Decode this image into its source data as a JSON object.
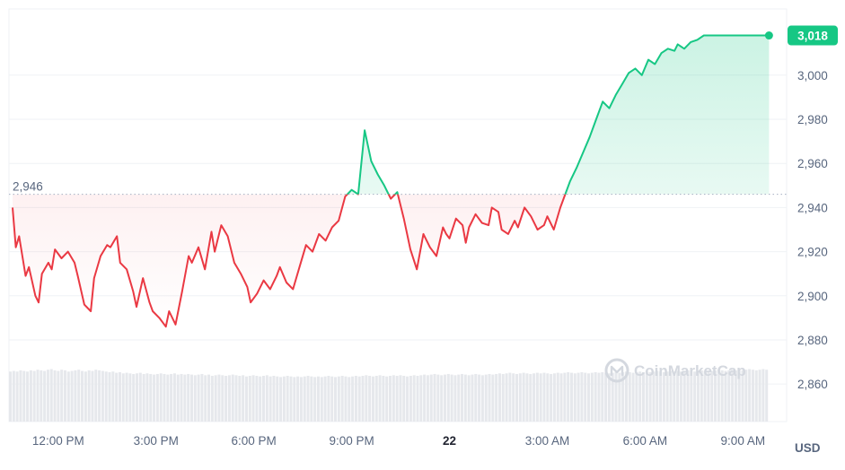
{
  "chart_data": {
    "type": "line",
    "unit": "USD",
    "reference_value": 2946,
    "reference_label": "2,946",
    "last_value": 3018,
    "last_label": "3,018",
    "up_color": "#16c784",
    "down_color": "#ea3943",
    "ylim": [
      2843,
      3030
    ],
    "yticks": [
      {
        "v": 3000,
        "label": "3,000"
      },
      {
        "v": 2980,
        "label": "2,980"
      },
      {
        "v": 2960,
        "label": "2,960"
      },
      {
        "v": 2940,
        "label": "2,940"
      },
      {
        "v": 2920,
        "label": "2,920"
      },
      {
        "v": 2900,
        "label": "2,900"
      },
      {
        "v": 2880,
        "label": "2,880"
      },
      {
        "v": 2860,
        "label": "2,860"
      }
    ],
    "xlim": [
      10.6,
      33.9
    ],
    "xticks": [
      {
        "h": 12,
        "label": "12:00 PM",
        "bold": false
      },
      {
        "h": 15,
        "label": "3:00 PM",
        "bold": false
      },
      {
        "h": 18,
        "label": "6:00 PM",
        "bold": false
      },
      {
        "h": 21,
        "label": "9:00 PM",
        "bold": false
      },
      {
        "h": 24,
        "label": "22",
        "bold": true
      },
      {
        "h": 27,
        "label": "3:00 AM",
        "bold": false
      },
      {
        "h": 30,
        "label": "6:00 AM",
        "bold": false
      },
      {
        "h": 33,
        "label": "9:00 AM",
        "bold": false
      }
    ],
    "series": [
      {
        "x": [
          10.6,
          10.7,
          10.8,
          11.0,
          11.1,
          11.3,
          11.4,
          11.5,
          11.7,
          11.8,
          11.9,
          12.1,
          12.3,
          12.5,
          12.6,
          12.8,
          13.0,
          13.1,
          13.3,
          13.5,
          13.6,
          13.8,
          13.9,
          14.1,
          14.3,
          14.4,
          14.6,
          14.8,
          14.9,
          15.1,
          15.3,
          15.4,
          15.6,
          15.8,
          16.0,
          16.1,
          16.3,
          16.5,
          16.7,
          16.8,
          17.0,
          17.2,
          17.4,
          17.6,
          17.8,
          17.9,
          18.1,
          18.3,
          18.5,
          18.7,
          18.8,
          19.0,
          19.2,
          19.4,
          19.6,
          19.8,
          20.0,
          20.2,
          20.4,
          20.6,
          20.8,
          21.0,
          21.2,
          21.4,
          21.6,
          21.8,
          22.0,
          22.2,
          22.4,
          22.6,
          22.8,
          23.0,
          23.2,
          23.4,
          23.6,
          23.8,
          23.9,
          24.0,
          24.2,
          24.4,
          24.5,
          24.6,
          24.8,
          25.0,
          25.2,
          25.3,
          25.5,
          25.6,
          25.8,
          26.0,
          26.1,
          26.3,
          26.5,
          26.7,
          26.9,
          27.0,
          27.2,
          27.4,
          27.5,
          27.7,
          27.9,
          28.1,
          28.3,
          28.5,
          28.7,
          28.9,
          29.1,
          29.3,
          29.5,
          29.7,
          29.9,
          30.1,
          30.3,
          30.5,
          30.7,
          30.9,
          31.0,
          31.2,
          31.4,
          31.6,
          31.8,
          32.0,
          32.2,
          32.4,
          32.6,
          32.8,
          33.0,
          33.2,
          33.4,
          33.5,
          33.6,
          33.7,
          33.8
        ],
        "values": [
          2940,
          2922,
          2927,
          2909,
          2913,
          2900,
          2897,
          2910,
          2915,
          2912,
          2921,
          2917,
          2920,
          2915,
          2909,
          2896,
          2893,
          2908,
          2918,
          2923,
          2922,
          2927,
          2915,
          2912,
          2902,
          2895,
          2908,
          2897,
          2893,
          2890,
          2886,
          2893,
          2887,
          2902,
          2918,
          2915,
          2922,
          2912,
          2929,
          2920,
          2932,
          2927,
          2915,
          2910,
          2904,
          2897,
          2901,
          2907,
          2903,
          2909,
          2913,
          2906,
          2903,
          2913,
          2923,
          2920,
          2928,
          2925,
          2931,
          2934,
          2945,
          2948,
          2946,
          2975,
          2961,
          2955,
          2950,
          2944,
          2947,
          2935,
          2921,
          2912,
          2928,
          2922,
          2918,
          2931,
          2928,
          2926,
          2935,
          2932,
          2924,
          2931,
          2937,
          2933,
          2932,
          2940,
          2938,
          2930,
          2928,
          2934,
          2931,
          2940,
          2936,
          2930,
          2932,
          2936,
          2930,
          2940,
          2944,
          2952,
          2958,
          2965,
          2972,
          2980,
          2988,
          2985,
          2991,
          2996,
          3001,
          3003,
          3000,
          3007,
          3005,
          3010,
          3012,
          3011,
          3014,
          3012,
          3015,
          3016,
          3018,
          3018,
          3018,
          3018,
          3018,
          3018,
          3018,
          3018,
          3018,
          3018,
          3018,
          3018,
          3018
        ]
      }
    ],
    "volume_bars": [
      0.82,
      0.83,
      0.82,
      0.84,
      0.83,
      0.82,
      0.84,
      0.83,
      0.85,
      0.84,
      0.83,
      0.85,
      0.86,
      0.84,
      0.83,
      0.85,
      0.84,
      0.82,
      0.83,
      0.84,
      0.85,
      0.83,
      0.82,
      0.84,
      0.83,
      0.85,
      0.84,
      0.83,
      0.82,
      0.81,
      0.82,
      0.8,
      0.81,
      0.79,
      0.8,
      0.79,
      0.78,
      0.79,
      0.8,
      0.78,
      0.79,
      0.78,
      0.77,
      0.78,
      0.79,
      0.78,
      0.77,
      0.78,
      0.79,
      0.77,
      0.78,
      0.77,
      0.78,
      0.77,
      0.76,
      0.77,
      0.78,
      0.76,
      0.77,
      0.75,
      0.76,
      0.77,
      0.76,
      0.75,
      0.76,
      0.77,
      0.76,
      0.75,
      0.76,
      0.74,
      0.75,
      0.76,
      0.75,
      0.74,
      0.75,
      0.76,
      0.74,
      0.75,
      0.74,
      0.73,
      0.74,
      0.75,
      0.74,
      0.73,
      0.74,
      0.73,
      0.74,
      0.75,
      0.74,
      0.73,
      0.74,
      0.73,
      0.74,
      0.75,
      0.74,
      0.73,
      0.74,
      0.75,
      0.74,
      0.73,
      0.74,
      0.75,
      0.74,
      0.75,
      0.76,
      0.75,
      0.74,
      0.75,
      0.76,
      0.75,
      0.74,
      0.75,
      0.76,
      0.75,
      0.76,
      0.75,
      0.74,
      0.75,
      0.76,
      0.75,
      0.76,
      0.77,
      0.76,
      0.77,
      0.78,
      0.77,
      0.76,
      0.77,
      0.78,
      0.77,
      0.76,
      0.77,
      0.78,
      0.77,
      0.76,
      0.77,
      0.78,
      0.77,
      0.76,
      0.77,
      0.78,
      0.77,
      0.78,
      0.79,
      0.78,
      0.79,
      0.8,
      0.79,
      0.78,
      0.79,
      0.8,
      0.79,
      0.78,
      0.79,
      0.8,
      0.79,
      0.8,
      0.79,
      0.78,
      0.79,
      0.8,
      0.79,
      0.8,
      0.81,
      0.8,
      0.79,
      0.8,
      0.81,
      0.8,
      0.79,
      0.8,
      0.81,
      0.8,
      0.81,
      0.8,
      0.79,
      0.8,
      0.81,
      0.8,
      0.81,
      0.82,
      0.81,
      0.8,
      0.81,
      0.82,
      0.81,
      0.82,
      0.81,
      0.82,
      0.83,
      0.82,
      0.81,
      0.82,
      0.83,
      0.82,
      0.83,
      0.82,
      0.83,
      0.84,
      0.83,
      0.82,
      0.83,
      0.84,
      0.83,
      0.84,
      0.83,
      0.84,
      0.85,
      0.84,
      0.83,
      0.84,
      0.85,
      0.84,
      0.85,
      0.84,
      0.85,
      0.86,
      0.85,
      0.84,
      0.85,
      0.86,
      0.85
    ],
    "watermark": "CoinMarketCap"
  }
}
